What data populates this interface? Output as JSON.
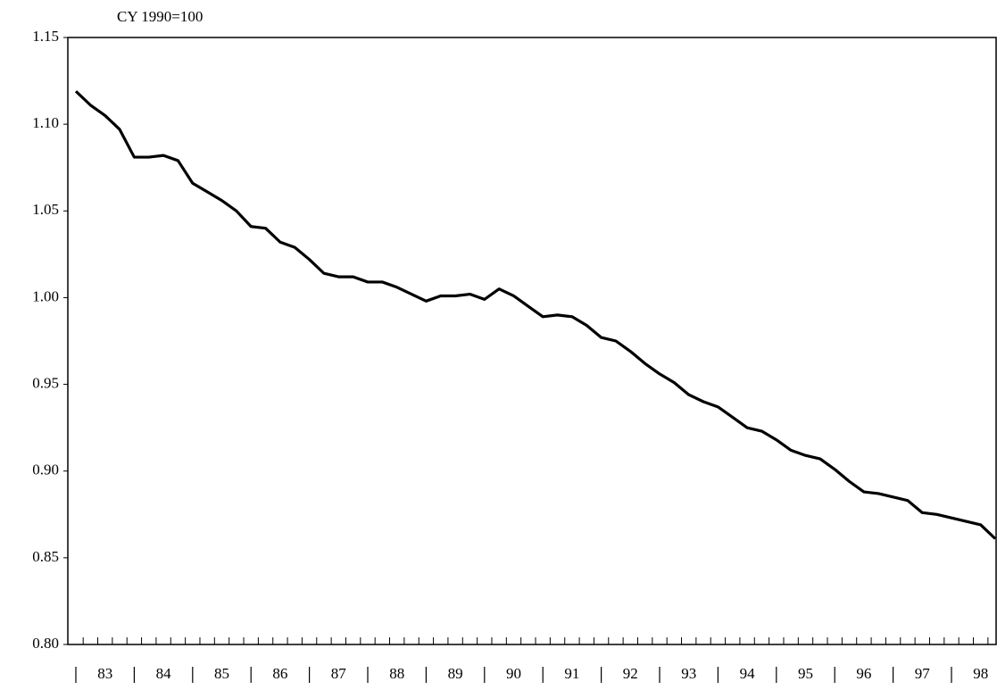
{
  "chart_data": {
    "type": "line",
    "y_axis_label": "CY 1990=100",
    "categories": [
      "83",
      null,
      null,
      null,
      "84",
      null,
      null,
      null,
      "85",
      null,
      null,
      null,
      "86",
      null,
      null,
      null,
      "87",
      null,
      null,
      null,
      "88",
      null,
      null,
      null,
      "89",
      null,
      null,
      null,
      "90",
      null,
      null,
      null,
      "91",
      null,
      null,
      null,
      "92",
      null,
      null,
      null,
      "93",
      null,
      null,
      null,
      "94",
      null,
      null,
      null,
      "95",
      null,
      null,
      null,
      "96",
      null,
      null,
      null,
      "97",
      null,
      null,
      null,
      "98",
      null,
      null,
      null
    ],
    "series": [
      {
        "color": "#000000",
        "values": [
          1.119,
          1.111,
          1.105,
          1.097,
          1.081,
          1.081,
          1.082,
          1.079,
          1.066,
          1.061,
          1.056,
          1.05,
          1.041,
          1.04,
          1.032,
          1.029,
          1.022,
          1.014,
          1.012,
          1.012,
          1.009,
          1.009,
          1.006,
          1.002,
          0.998,
          1.001,
          1.001,
          1.002,
          0.999,
          1.005,
          1.001,
          0.995,
          0.989,
          0.99,
          0.989,
          0.984,
          0.977,
          0.975,
          0.969,
          0.962,
          0.956,
          0.951,
          0.944,
          0.94,
          0.937,
          0.931,
          0.925,
          0.923,
          0.918,
          0.912,
          0.909,
          0.907,
          0.901,
          0.894,
          0.888,
          0.887,
          0.885,
          0.883,
          0.876,
          0.875,
          0.873,
          0.871,
          0.869,
          0.861
        ]
      }
    ],
    "ylim": [
      0.8,
      1.15
    ],
    "yticks": [
      {
        "value": 0.8,
        "label": "0.80"
      },
      0.85,
      {
        "value": 0.9,
        "label": "0.90"
      },
      0.95,
      {
        "value": 1.0,
        "label": "1.00"
      },
      1.05,
      {
        "value": 1.1,
        "label": "1.10"
      },
      1.15
    ],
    "grid": false
  }
}
